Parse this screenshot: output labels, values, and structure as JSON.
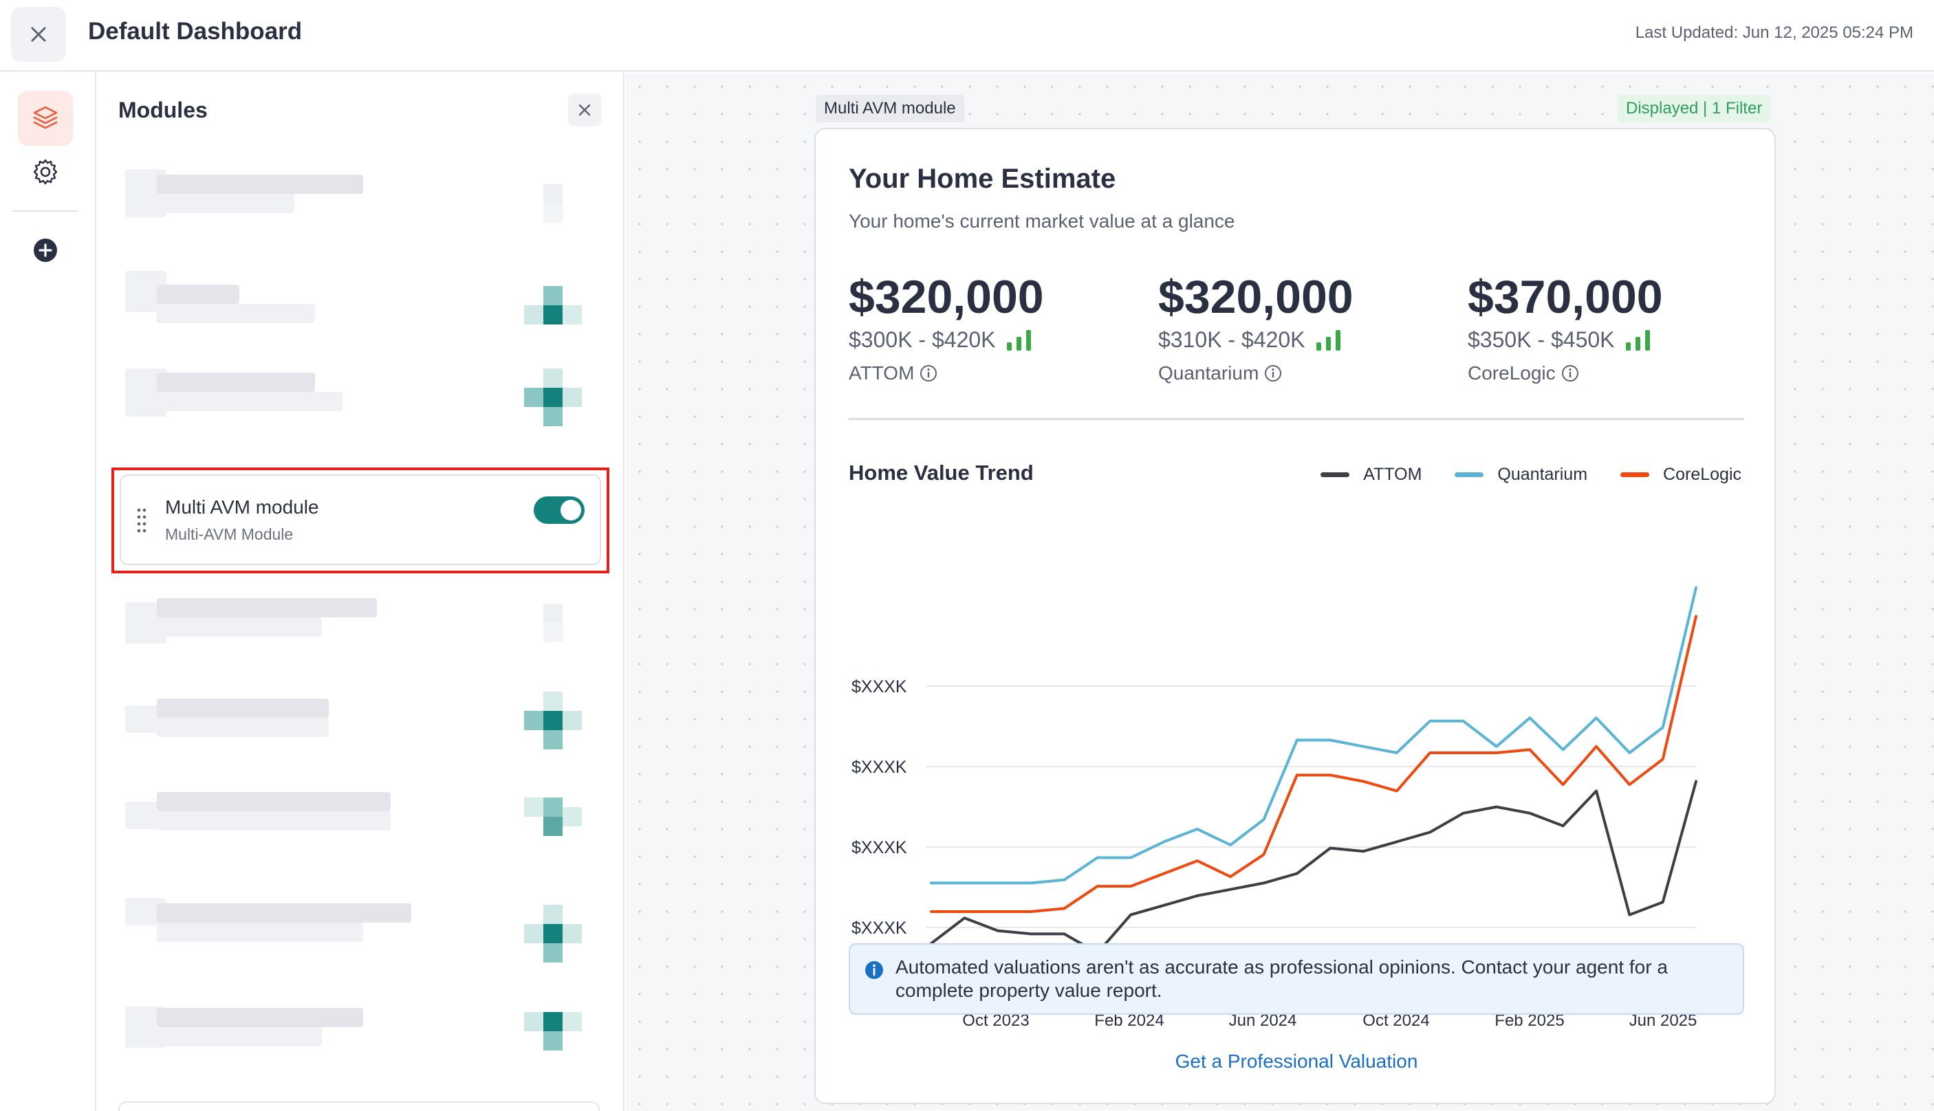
{
  "header": {
    "title": "Default Dashboard",
    "last_updated": "Last Updated: Jun 12, 2025 05:24 PM"
  },
  "rail": {
    "icons": [
      "layers-icon",
      "gear-icon",
      "add-circle-icon"
    ]
  },
  "modules_panel": {
    "title": "Modules",
    "active_module": {
      "name": "Multi AVM module",
      "subtitle": "Multi-AVM Module",
      "enabled": true
    }
  },
  "canvas": {
    "module_tag": "Multi AVM module",
    "filter_tag": "Displayed | 1 Filter"
  },
  "card": {
    "title": "Your Home Estimate",
    "subtitle": "Your home's current market value at a glance",
    "estimates": [
      {
        "value": "$320,000",
        "range": "$300K - $420K",
        "source": "ATTOM"
      },
      {
        "value": "$320,000",
        "range": "$310K - $420K",
        "source": "Quantarium"
      },
      {
        "value": "$370,000",
        "range": "$350K - $450K",
        "source": "CoreLogic"
      }
    ],
    "trend_title": "Home Value Trend",
    "notice": "Automated valuations aren't as accurate as professional opinions. Contact your agent for a complete property value report.",
    "cta": "Get a Professional Valuation"
  },
  "colors": {
    "attom": "#3d3f45",
    "quantarium": "#5ab4d6",
    "corelogic": "#ee4a10",
    "accent_teal": "#14827c",
    "signal_green": "#39a845"
  },
  "chart_data": {
    "type": "line",
    "title": "Home Value Trend",
    "ytick_labels": [
      "$XXXK",
      "$XXXK",
      "$XXXK",
      "$XXXK"
    ],
    "xtick_labels": [
      "Oct 2023",
      "Feb 2024",
      "Jun 2024",
      "Oct 2024",
      "Feb 2025",
      "Jun 2025"
    ],
    "y_range": [
      0,
      100
    ],
    "grid": true,
    "legend_position": "top-right",
    "series": [
      {
        "name": "ATTOM",
        "values": [
          19,
          27,
          23,
          22,
          22,
          16,
          28,
          31,
          34,
          36,
          38,
          41,
          49,
          48,
          51,
          54,
          60,
          62,
          60,
          56,
          67,
          28,
          32,
          70
        ]
      },
      {
        "name": "Quantarium",
        "values": [
          38,
          38,
          38,
          38,
          39,
          46,
          46,
          51,
          55,
          50,
          58,
          83,
          83,
          81,
          79,
          89,
          89,
          81,
          90,
          80,
          90,
          79,
          87,
          131
        ]
      },
      {
        "name": "CoreLogic",
        "values": [
          29,
          29,
          29,
          29,
          30,
          37,
          37,
          41,
          45,
          40,
          47,
          72,
          72,
          70,
          67,
          79,
          79,
          79,
          80,
          69,
          81,
          69,
          77,
          122
        ]
      }
    ]
  }
}
